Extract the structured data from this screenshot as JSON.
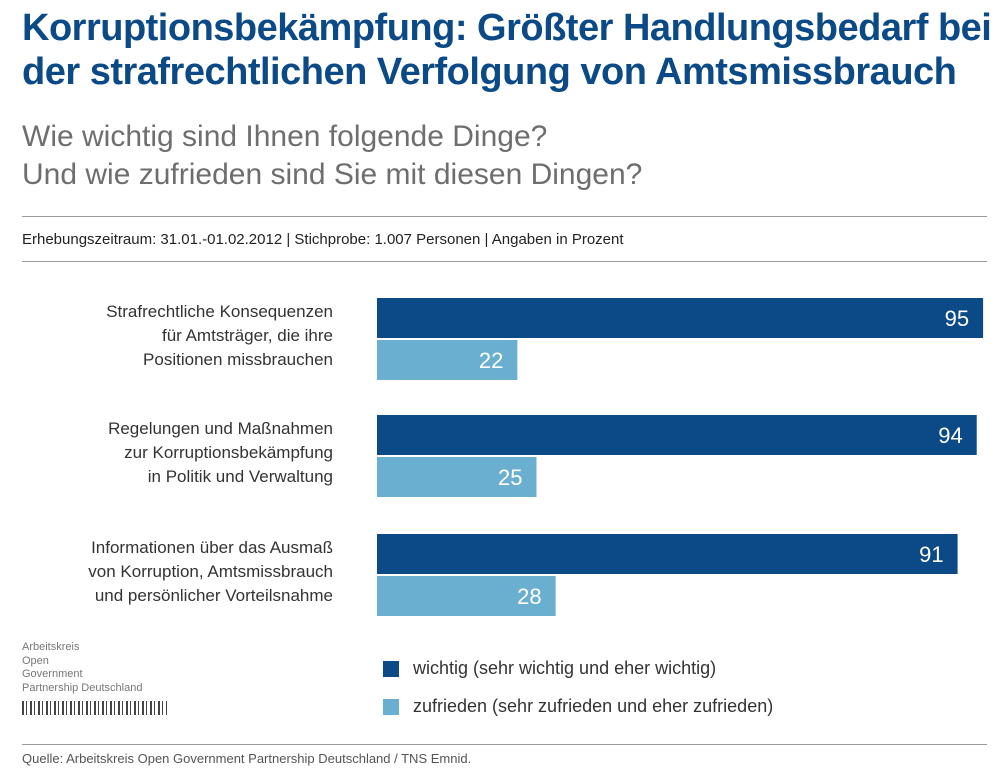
{
  "header": {
    "title": "Korruptionsbekämpfung: Größter Handlungsbedarf bei der strafrechtlichen Verfolgung von Amtsmissbrauch",
    "subtitle_line1": "Wie wichtig sind Ihnen folgende Dinge?",
    "subtitle_line2": "Und wie zufrieden sind Sie mit diesen Dingen?",
    "meta": "Erhebungszeitraum: 31.01.-01.02.2012 | Stichprobe: 1.007 Personen | Angaben in Prozent"
  },
  "colors": {
    "wichtig": "#0b4a86",
    "zufrieden": "#6aaed0",
    "title": "#0b4a86"
  },
  "chart_data": {
    "type": "bar",
    "orientation": "horizontal",
    "categories": [
      [
        "Strafrechtliche Konsequenzen",
        "für Amtsträger, die ihre",
        "Positionen missbrauchen"
      ],
      [
        "Regelungen und Maßnahmen",
        "zur Korruptionsbekämpfung",
        "in Politik und Verwaltung"
      ],
      [
        "Informationen über das Ausmaß",
        "von Korruption, Amtsmissbrauch",
        "und persönlicher Vorteilsnahme"
      ]
    ],
    "series": [
      {
        "name": "wichtig (sehr wichtig und eher wichtig)",
        "values": [
          95,
          94,
          91
        ]
      },
      {
        "name": "zufrieden (sehr zufrieden und eher zufrieden)",
        "values": [
          22,
          25,
          28
        ]
      }
    ],
    "xlim": [
      0,
      100
    ],
    "unit": "Prozent",
    "legend_position": "bottom"
  },
  "logo": {
    "line1": "Arbeitskreis",
    "line2": "Open",
    "line3": "Government",
    "line4": "Partnership Deutschland"
  },
  "source": "Quelle: Arbeitskreis Open Government Partnership Deutschland / TNS Emnid."
}
